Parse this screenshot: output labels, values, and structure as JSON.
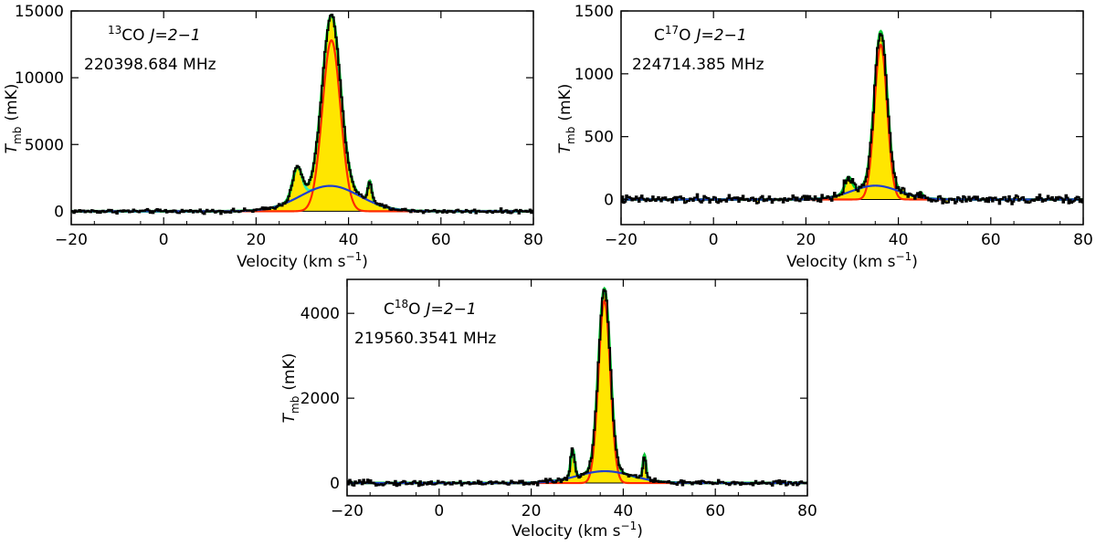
{
  "colors": {
    "observed": "#000000",
    "fill": "#ffe600",
    "total_fit": "#00cc33",
    "main_component": "#ff2a00",
    "broad_component": "#1f3fd0",
    "component_29": "#33eeaa",
    "component_45": "#ff33cc"
  },
  "chart_data": [
    {
      "type": "line",
      "id": "13co",
      "line_name": "13CO J=2−1",
      "line_iso": "13",
      "line_mol": "CO",
      "line_trans": "J=2−1",
      "frequency": "220398.684 MHz",
      "xlabel": "Velocity (km s−1)",
      "xlabel_main": "Velocity (km s",
      "xlabel_exp": "−1",
      "xlabel_close": ")",
      "ylabel": "Tmb (mK)",
      "ylabel_T": "T",
      "ylabel_sub": "mb",
      "ylabel_unit": "(mK)",
      "xlim": [
        -20,
        80
      ],
      "ylim": [
        -1000,
        15000
      ],
      "xticks": [
        -20,
        0,
        20,
        40,
        60,
        80
      ],
      "xtick_labels": [
        "−20",
        "0",
        "20",
        "40",
        "60",
        "80"
      ],
      "yticks": [
        0,
        5000,
        10000,
        15000
      ],
      "ytick_labels": [
        "0",
        "5000",
        "10000",
        "15000"
      ],
      "noise": 110,
      "components": [
        {
          "name": "main",
          "center": 36.3,
          "amplitude": 12800,
          "fwhm": 4.6
        },
        {
          "name": "broad",
          "center": 36.0,
          "amplitude": 1900,
          "fwhm": 15.0
        },
        {
          "name": "comp29",
          "center": 28.9,
          "amplitude": 2300,
          "fwhm": 2.4
        },
        {
          "name": "comp45",
          "center": 44.6,
          "amplitude": 1500,
          "fwhm": 1.0
        }
      ]
    },
    {
      "type": "line",
      "id": "c17o",
      "line_name": "C17O J=2−1",
      "line_iso": "17",
      "line_mol": "C",
      "line_mol2": "O",
      "line_trans": "J=2−1",
      "frequency": "224714.385 MHz",
      "xlabel": "Velocity (km s−1)",
      "xlabel_main": "Velocity (km s",
      "xlabel_exp": "−1",
      "xlabel_close": ")",
      "ylabel": "Tmb (mK)",
      "ylabel_T": "T",
      "ylabel_sub": "mb",
      "ylabel_unit": "(mK)",
      "xlim": [
        -20,
        80
      ],
      "ylim": [
        -200,
        1500
      ],
      "xticks": [
        -20,
        0,
        20,
        40,
        60,
        80
      ],
      "xtick_labels": [
        "−20",
        "0",
        "20",
        "40",
        "60",
        "80"
      ],
      "yticks": [
        0,
        500,
        1000,
        1500
      ],
      "ytick_labels": [
        "0",
        "500",
        "1000",
        "1500"
      ],
      "noise": 24,
      "components": [
        {
          "name": "main",
          "center": 36.2,
          "amplitude": 1230,
          "fwhm": 3.2
        },
        {
          "name": "broad",
          "center": 35.0,
          "amplitude": 110,
          "fwhm": 12.0
        },
        {
          "name": "comp29",
          "center": 29.2,
          "amplitude": 120,
          "fwhm": 1.8
        },
        {
          "name": "comp45",
          "center": 44.8,
          "amplitude": 40,
          "fwhm": 1.0
        }
      ]
    },
    {
      "type": "line",
      "id": "c18o",
      "line_name": "C18O J=2−1",
      "line_iso": "18",
      "line_mol": "C",
      "line_mol2": "O",
      "line_trans": "J=2−1",
      "frequency": "219560.3541 MHz",
      "xlabel": "Velocity (km s−1)",
      "xlabel_main": "Velocity (km s",
      "xlabel_exp": "−1",
      "xlabel_close": ")",
      "ylabel": "Tmb (mK)",
      "ylabel_T": "T",
      "ylabel_sub": "mb",
      "ylabel_unit": "(mK)",
      "xlim": [
        -20,
        80
      ],
      "ylim": [
        -300,
        4800
      ],
      "xticks": [
        -20,
        0,
        20,
        40,
        60,
        80
      ],
      "xtick_labels": [
        "−20",
        "0",
        "20",
        "40",
        "60",
        "80"
      ],
      "yticks": [
        0,
        2000,
        4000
      ],
      "ytick_labels": [
        "0",
        "2000",
        "4000"
      ],
      "noise": 45,
      "components": [
        {
          "name": "main",
          "center": 35.9,
          "amplitude": 4300,
          "fwhm": 3.0
        },
        {
          "name": "broad",
          "center": 36.0,
          "amplitude": 280,
          "fwhm": 14.0
        },
        {
          "name": "comp29",
          "center": 29.0,
          "amplitude": 650,
          "fwhm": 1.0
        },
        {
          "name": "comp45",
          "center": 44.6,
          "amplitude": 560,
          "fwhm": 0.8
        }
      ]
    }
  ]
}
